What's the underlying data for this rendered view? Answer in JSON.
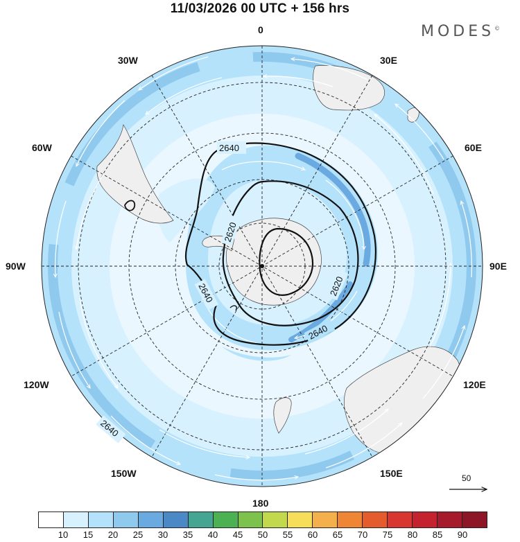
{
  "header": {
    "title": "11/03/2026  00 UTC  + 156 hrs",
    "brand": "MODES",
    "brand_mark": "©"
  },
  "longitude_labels": {
    "lon_0": "0",
    "lon_30e": "30E",
    "lon_60e": "60E",
    "lon_90e": "90E",
    "lon_120e": "120E",
    "lon_150e": "150E",
    "lon_180": "180",
    "lon_150w": "150W",
    "lon_120w": "120W",
    "lon_90w": "90W",
    "lon_60w": "60W",
    "lon_30w": "30W"
  },
  "contours": {
    "outer_label": "2640",
    "mid_label_upper": "2640",
    "mid_label_left": "2640",
    "mid_label_lower": "2640",
    "inner_label_left": "2620",
    "inner_label_right": "2620"
  },
  "reference_vector": {
    "value": "50"
  },
  "colorbar": {
    "colors": [
      "#ffffff",
      "#d7f1ff",
      "#b4e2fb",
      "#8fc9ee",
      "#6aaae0",
      "#4b89c6",
      "#45a593",
      "#4bb152",
      "#7cc24c",
      "#c2d94d",
      "#f7de5a",
      "#f4b04a",
      "#ef8636",
      "#e45c2e",
      "#d73631",
      "#c3222e",
      "#a61b2b",
      "#8c1526"
    ],
    "ticks": [
      "10",
      "15",
      "20",
      "25",
      "30",
      "35",
      "40",
      "45",
      "50",
      "55",
      "60",
      "65",
      "70",
      "75",
      "80",
      "85",
      "90"
    ]
  },
  "colors": {
    "land": "#efefef",
    "light_wind": "#d7f1ff",
    "mid_wind": "#b4e2fb",
    "strong_wind": "#8fc9ee",
    "jet_core": "#6aaae0"
  }
}
